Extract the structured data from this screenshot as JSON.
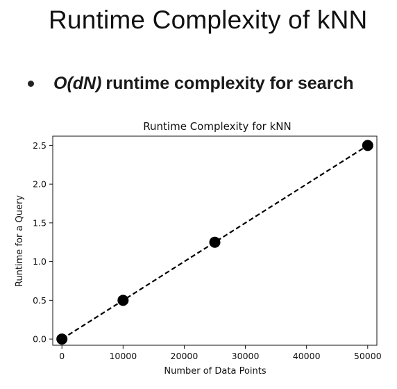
{
  "slide": {
    "title": "Runtime Complexity of kNN",
    "bullet": {
      "emphasis": "O(dN)",
      "text": "runtime complexity for search"
    }
  },
  "chart_data": {
    "type": "line",
    "title": "Runtime Complexity for kNN",
    "xlabel": "Number of Data Points",
    "ylabel": "Runtime for a Query",
    "x": [
      0,
      10000,
      25000,
      50000
    ],
    "series": [
      {
        "values": [
          0.0,
          0.5,
          1.25,
          2.5
        ]
      }
    ],
    "xlim": [
      -1500,
      51500
    ],
    "ylim": [
      -0.08,
      2.62
    ],
    "xticks": [
      0,
      10000,
      20000,
      30000,
      40000,
      50000
    ],
    "yticks": [
      0.0,
      0.5,
      1.0,
      1.5,
      2.0,
      2.5
    ],
    "xtick_labels": [
      "0",
      "10000",
      "20000",
      "30000",
      "40000",
      "50000"
    ],
    "ytick_labels": [
      "0.0",
      "0.5",
      "1.0",
      "1.5",
      "2.0",
      "2.5"
    ],
    "line_style": "dashed",
    "marker": "circle",
    "grid": false,
    "legend": "none",
    "colors": {
      "line": "#000000",
      "marker": "#000000"
    }
  }
}
